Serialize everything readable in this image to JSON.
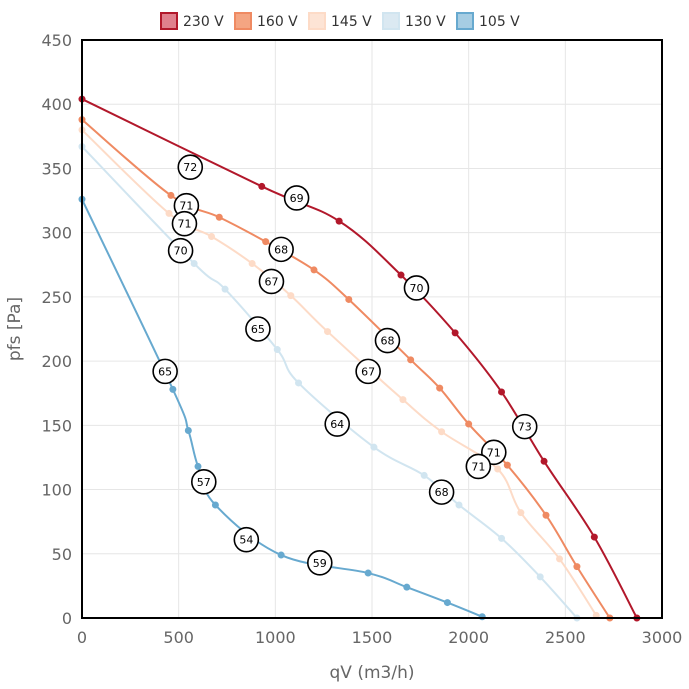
{
  "chart_data": {
    "type": "line",
    "xlabel": "qV (m3/h)",
    "ylabel": "pfs [Pa]",
    "xlim": [
      0,
      3000
    ],
    "ylim": [
      0,
      450
    ],
    "xticks": [
      0,
      500,
      1000,
      1500,
      2000,
      2500,
      3000
    ],
    "yticks": [
      0,
      50,
      100,
      150,
      200,
      250,
      300,
      350,
      400,
      450
    ],
    "grid": true,
    "legend_position": "top",
    "series": [
      {
        "name": "230 V",
        "color": "#b2182b",
        "fill": "#e0808d",
        "points": [
          [
            0,
            404
          ],
          [
            930,
            336
          ],
          [
            1330,
            309
          ],
          [
            1650,
            267
          ],
          [
            1930,
            222
          ],
          [
            2170,
            176
          ],
          [
            2390,
            122
          ],
          [
            2650,
            63
          ],
          [
            2870,
            0
          ]
        ]
      },
      {
        "name": "160 V",
        "color": "#ef8a62",
        "fill": "#f4a582",
        "points": [
          [
            0,
            388
          ],
          [
            460,
            329
          ],
          [
            710,
            312
          ],
          [
            950,
            293
          ],
          [
            1200,
            271
          ],
          [
            1380,
            248
          ],
          [
            1700,
            201
          ],
          [
            1850,
            179
          ],
          [
            2000,
            151
          ],
          [
            2200,
            119
          ],
          [
            2400,
            80
          ],
          [
            2560,
            40
          ],
          [
            2730,
            0
          ]
        ]
      },
      {
        "name": "145 V",
        "color": "#fddbc7",
        "fill": "#fde4d5",
        "points": [
          [
            0,
            380
          ],
          [
            450,
            315
          ],
          [
            670,
            297
          ],
          [
            880,
            276
          ],
          [
            1080,
            251
          ],
          [
            1270,
            223
          ],
          [
            1660,
            170
          ],
          [
            1860,
            145
          ],
          [
            2150,
            116
          ],
          [
            2270,
            82
          ],
          [
            2470,
            46
          ],
          [
            2660,
            2
          ]
        ]
      },
      {
        "name": "130 V",
        "color": "#d1e5f0",
        "fill": "#dbe9f2",
        "points": [
          [
            0,
            367
          ],
          [
            580,
            276
          ],
          [
            740,
            256
          ],
          [
            1010,
            209
          ],
          [
            1120,
            183
          ],
          [
            1510,
            133
          ],
          [
            1770,
            111
          ],
          [
            1950,
            88
          ],
          [
            2170,
            62
          ],
          [
            2370,
            32
          ],
          [
            2560,
            0
          ]
        ]
      },
      {
        "name": "105 V",
        "color": "#67a9cf",
        "fill": "#a6cde3",
        "points": [
          [
            0,
            326
          ],
          [
            470,
            178
          ],
          [
            550,
            146
          ],
          [
            600,
            118
          ],
          [
            690,
            88
          ],
          [
            1030,
            49
          ],
          [
            1480,
            35
          ],
          [
            1680,
            24
          ],
          [
            1890,
            12
          ],
          [
            2070,
            1
          ]
        ]
      }
    ],
    "annotations": [
      {
        "x": 560,
        "y": 351,
        "label": "72"
      },
      {
        "x": 1110,
        "y": 327,
        "label": "69"
      },
      {
        "x": 540,
        "y": 321,
        "label": "71"
      },
      {
        "x": 530,
        "y": 307,
        "label": "71"
      },
      {
        "x": 510,
        "y": 286,
        "label": "70"
      },
      {
        "x": 1030,
        "y": 287,
        "label": "68"
      },
      {
        "x": 980,
        "y": 262,
        "label": "67"
      },
      {
        "x": 1730,
        "y": 257,
        "label": "70"
      },
      {
        "x": 910,
        "y": 225,
        "label": "65"
      },
      {
        "x": 1580,
        "y": 216,
        "label": "68"
      },
      {
        "x": 1480,
        "y": 192,
        "label": "67"
      },
      {
        "x": 430,
        "y": 192,
        "label": "65"
      },
      {
        "x": 1320,
        "y": 151,
        "label": "64"
      },
      {
        "x": 2290,
        "y": 149,
        "label": "73"
      },
      {
        "x": 2130,
        "y": 129,
        "label": "71"
      },
      {
        "x": 2050,
        "y": 118,
        "label": "71"
      },
      {
        "x": 630,
        "y": 106,
        "label": "57"
      },
      {
        "x": 1860,
        "y": 98,
        "label": "68"
      },
      {
        "x": 850,
        "y": 61,
        "label": "54"
      },
      {
        "x": 1230,
        "y": 43,
        "label": "59"
      }
    ]
  }
}
